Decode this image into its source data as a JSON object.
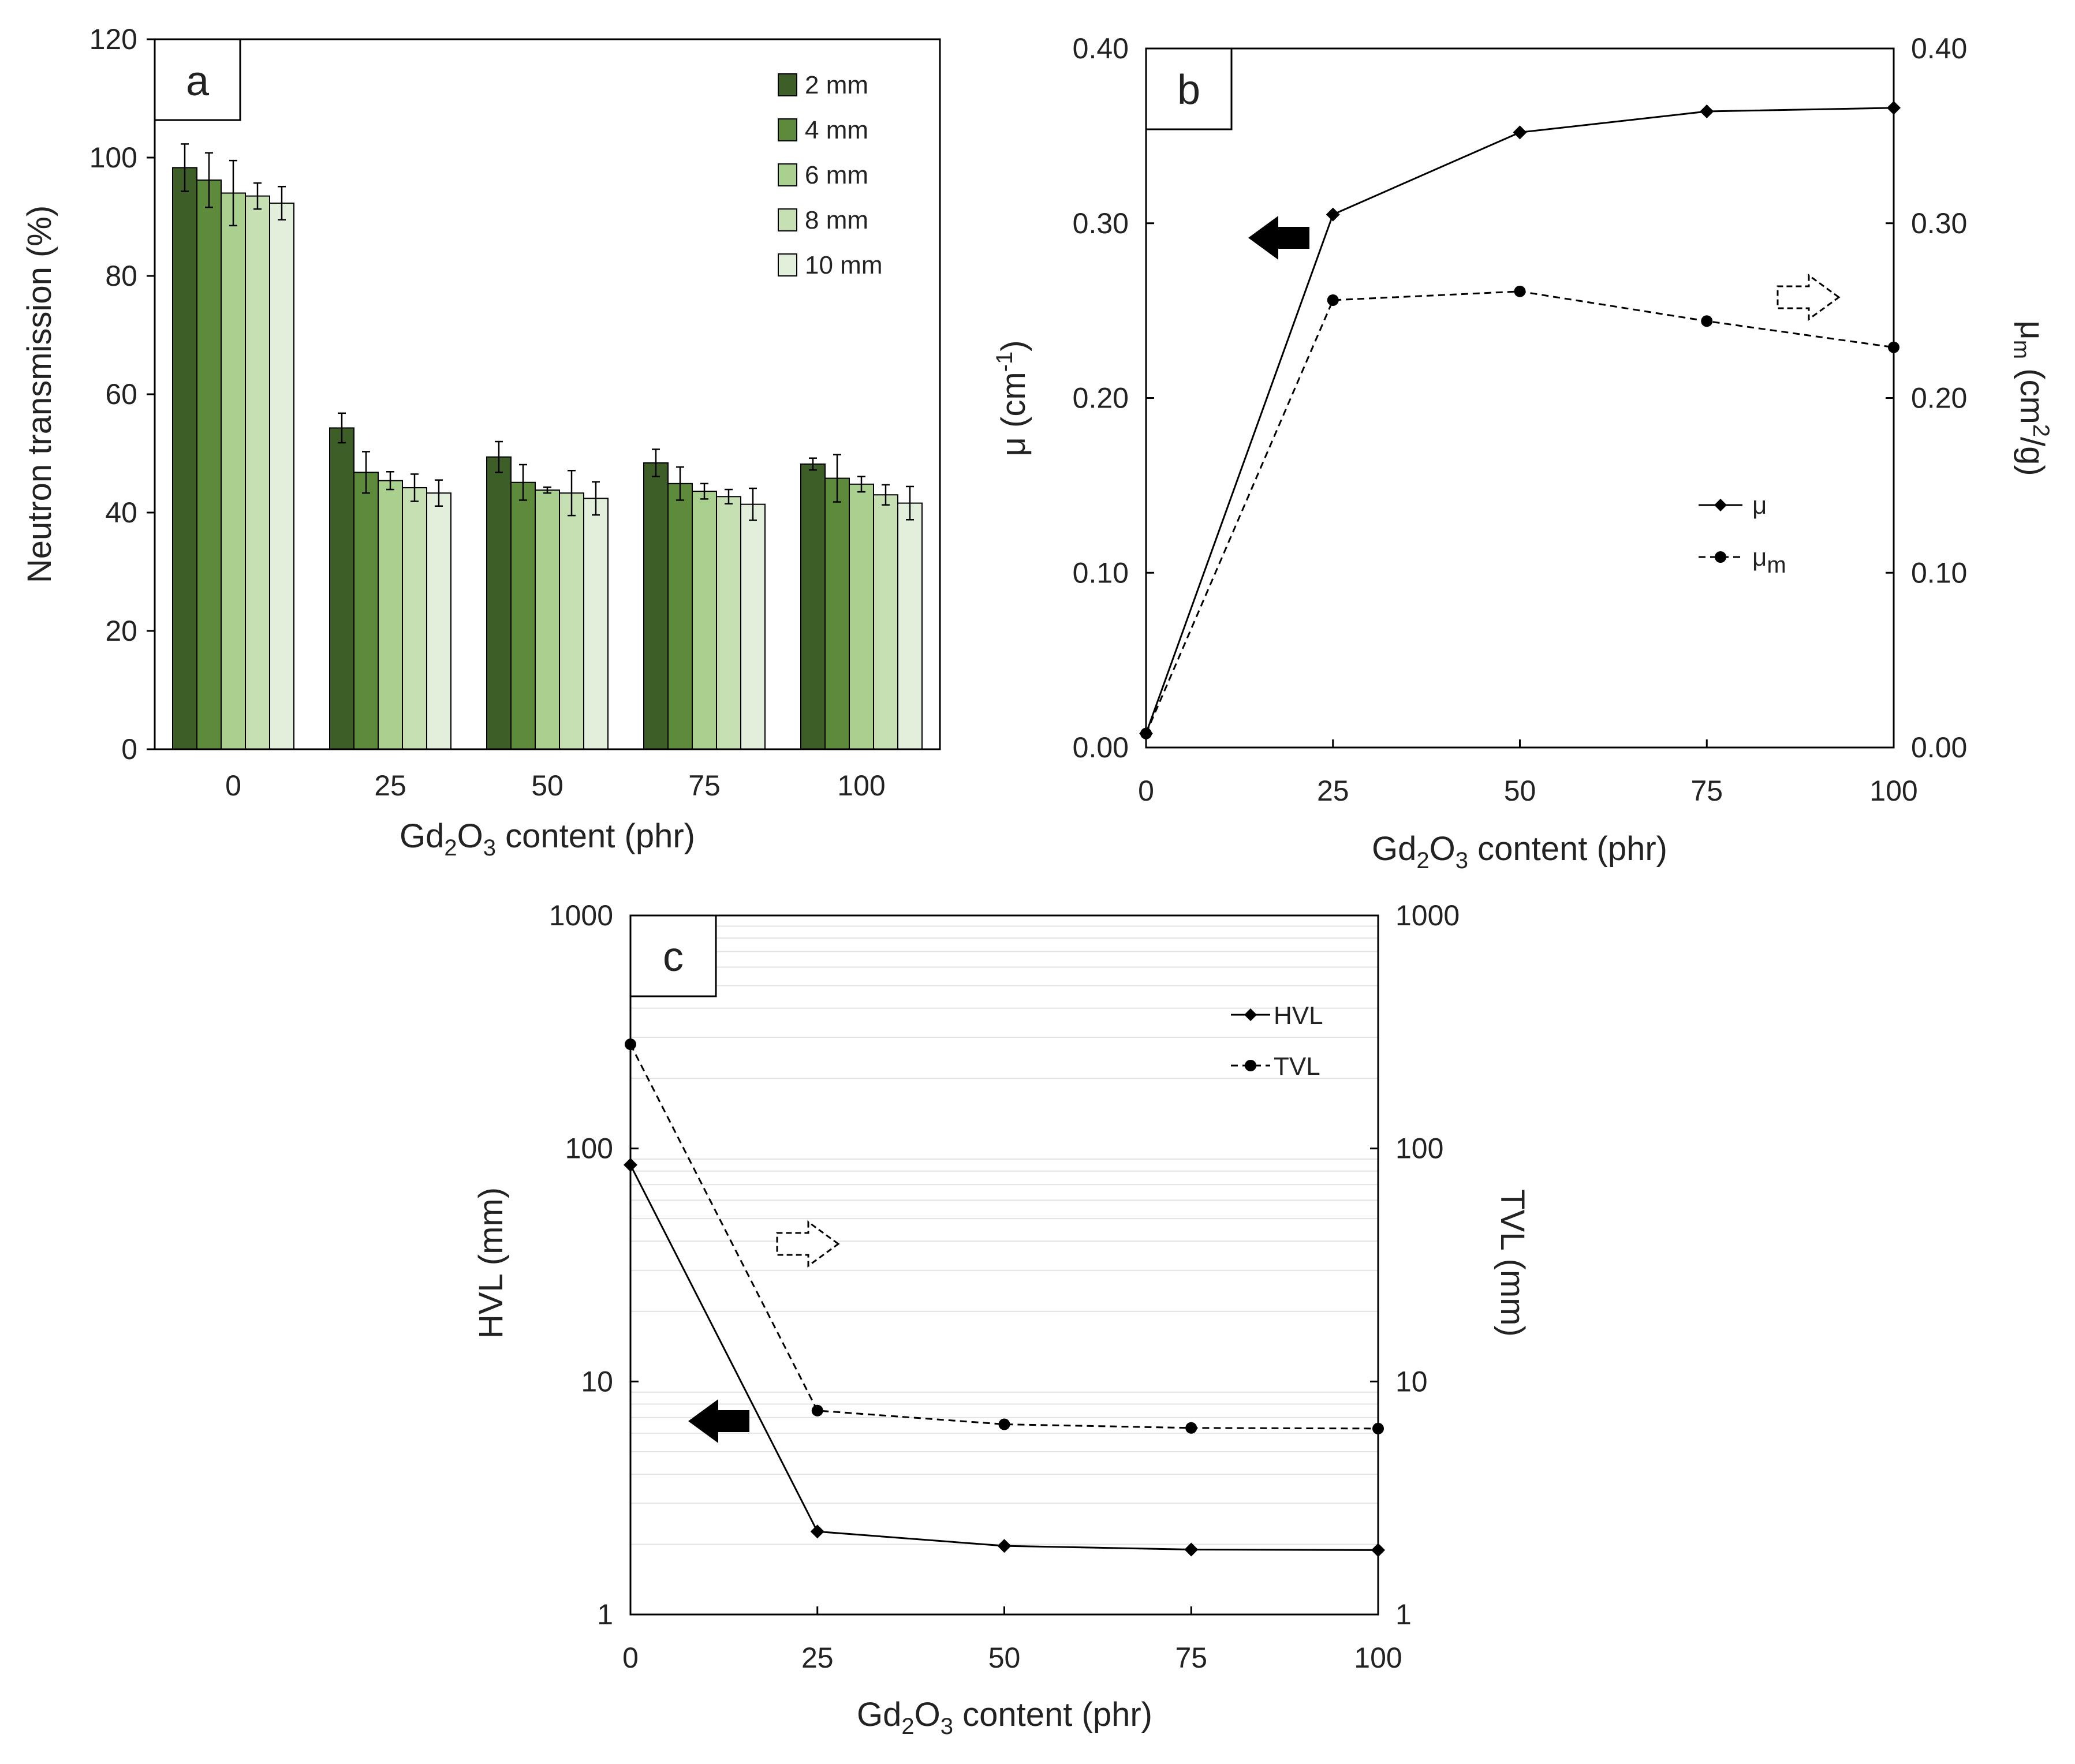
{
  "figure": {
    "background": "#ffffff",
    "panels": [
      "a",
      "b",
      "c"
    ]
  },
  "chart_data": [
    {
      "id": "a",
      "type": "bar",
      "panel_label": "a",
      "title": "",
      "categories": [
        "0",
        "25",
        "50",
        "75",
        "100"
      ],
      "series": [
        {
          "name": "2 mm",
          "color": "#3d5e26",
          "values": [
            98.3,
            54.3,
            49.4,
            48.4,
            48.2
          ],
          "errors": [
            4.0,
            2.5,
            2.6,
            2.3,
            1.0
          ]
        },
        {
          "name": "4 mm",
          "color": "#5e8a3c",
          "values": [
            96.2,
            46.8,
            45.1,
            44.9,
            45.8
          ],
          "errors": [
            4.6,
            3.5,
            3.0,
            2.8,
            4.0
          ]
        },
        {
          "name": "6 mm",
          "color": "#a9d08e",
          "values": [
            94.0,
            45.4,
            43.8,
            43.6,
            44.8
          ],
          "errors": [
            5.5,
            1.5,
            0.5,
            1.3,
            1.3
          ]
        },
        {
          "name": "8 mm",
          "color": "#c6e0b4",
          "values": [
            93.5,
            44.2,
            43.3,
            42.7,
            43.0
          ],
          "errors": [
            2.2,
            2.3,
            3.8,
            1.2,
            1.7
          ]
        },
        {
          "name": "10 mm",
          "color": "#e2efda",
          "values": [
            92.3,
            43.3,
            42.4,
            41.4,
            41.6
          ],
          "errors": [
            2.8,
            2.2,
            2.8,
            2.7,
            2.8
          ]
        }
      ],
      "xlabel": {
        "pre": "Gd",
        "sub1": "2",
        "mid": "O",
        "sub2": "3",
        "post": " content (phr)"
      },
      "ylabel": "Neutron transmission (%)",
      "ylim": [
        0,
        120
      ],
      "yticks": [
        "0",
        "20",
        "40",
        "60",
        "80",
        "100",
        "120"
      ],
      "legend_position": "top-right"
    },
    {
      "id": "b",
      "type": "line",
      "panel_label": "b",
      "x": [
        0,
        25,
        50,
        75,
        100
      ],
      "xticks": [
        "0",
        "25",
        "50",
        "75",
        "100"
      ],
      "series": [
        {
          "name": "μ",
          "axis": "left",
          "line": "solid",
          "marker": "diamond",
          "values": [
            0.008,
            0.305,
            0.352,
            0.364,
            0.366
          ]
        },
        {
          "name": "μm",
          "legend_base": "μ",
          "legend_sub": "m",
          "axis": "right",
          "line": "dashed",
          "marker": "circle",
          "values": [
            0.008,
            0.256,
            0.261,
            0.244,
            0.229
          ]
        }
      ],
      "xlim": [
        0,
        100
      ],
      "ylim_left": [
        0,
        0.4
      ],
      "ylim_right": [
        0,
        0.4
      ],
      "yticks_left": [
        "0.00",
        "0.10",
        "0.20",
        "0.30",
        "0.40"
      ],
      "yticks_right": [
        "0.00",
        "0.10",
        "0.20",
        "0.30",
        "0.40"
      ],
      "xlabel": {
        "pre": "Gd",
        "sub1": "2",
        "mid": "O",
        "sub2": "3",
        "post": " content (phr)"
      },
      "ylabel_left": {
        "pre": "μ (cm",
        "sup": "-1",
        "post": ")"
      },
      "ylabel_right": {
        "pre": "μ",
        "sub": "m",
        "mid": " (cm",
        "sup": "2",
        "post": "/g)"
      },
      "annotations": [
        "solid arrow pointing left → μ uses left axis",
        "dashed arrow pointing right → μm uses right axis"
      ],
      "legend_position": "center-right"
    },
    {
      "id": "c",
      "type": "line",
      "panel_label": "c",
      "yscale": "log",
      "x": [
        0,
        25,
        50,
        75,
        100
      ],
      "xticks": [
        "0",
        "25",
        "50",
        "75",
        "100"
      ],
      "series": [
        {
          "name": "HVL",
          "axis": "left",
          "line": "solid",
          "marker": "diamond",
          "values": [
            85,
            2.27,
            1.97,
            1.9,
            1.89
          ]
        },
        {
          "name": "TVL",
          "axis": "right",
          "line": "dashed",
          "marker": "circle",
          "values": [
            280,
            7.5,
            6.55,
            6.32,
            6.28
          ]
        }
      ],
      "xlim": [
        0,
        100
      ],
      "ylim_left": [
        1,
        1000
      ],
      "ylim_right": [
        1,
        1000
      ],
      "yticks_left": [
        "1",
        "10",
        "100",
        "1000"
      ],
      "yticks_right": [
        "1",
        "10",
        "100",
        "1000"
      ],
      "xlabel": {
        "pre": "Gd",
        "sub1": "2",
        "mid": "O",
        "sub2": "3",
        "post": " content (phr)"
      },
      "ylabel_left": "HVL (mm)",
      "ylabel_right": "TVL (mm)",
      "grid": "minor log gridlines",
      "annotations": [
        "solid arrow pointing left → HVL uses left axis",
        "dashed arrow pointing right → TVL uses right axis"
      ],
      "legend_position": "top-right"
    }
  ]
}
